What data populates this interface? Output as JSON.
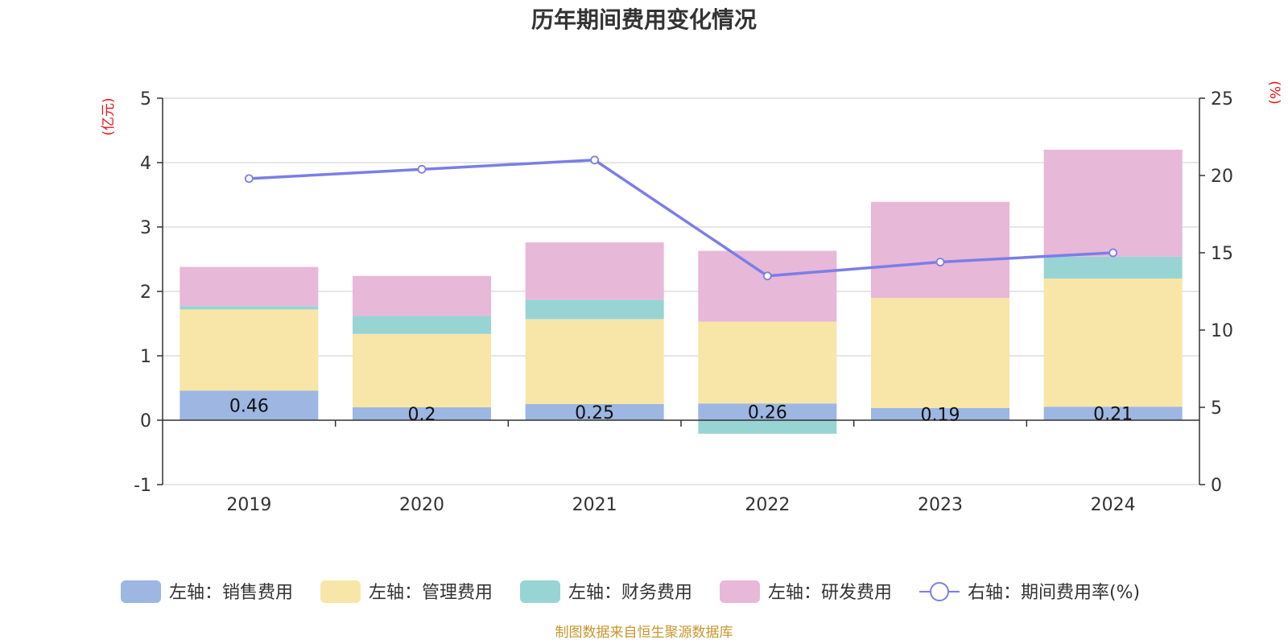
{
  "chart_data": {
    "type": "bar",
    "stacked": true,
    "title": "历年期间费用变化情况",
    "categories": [
      "2019",
      "2020",
      "2021",
      "2022",
      "2023",
      "2024"
    ],
    "left_axis": {
      "unit_label": "(亿元)",
      "range": [
        -1,
        5
      ],
      "ticks": [
        -1,
        0,
        1,
        2,
        3,
        4,
        5
      ]
    },
    "right_axis": {
      "unit_label": "(%)",
      "range": [
        0,
        25
      ],
      "ticks": [
        0,
        5,
        10,
        15,
        20,
        25
      ]
    },
    "series": [
      {
        "name": "左轴：销售费用",
        "axis": "left",
        "type": "bar",
        "color": "#9db6e2",
        "values": [
          0.46,
          0.2,
          0.25,
          0.26,
          0.19,
          0.21
        ],
        "show_labels": true
      },
      {
        "name": "左轴：管理费用",
        "axis": "left",
        "type": "bar",
        "color": "#f7e6a8",
        "values": [
          1.26,
          1.14,
          1.32,
          1.27,
          1.71,
          1.99
        ]
      },
      {
        "name": "左轴：财务费用",
        "axis": "left",
        "type": "bar",
        "color": "#99d4d4",
        "values": [
          0.05,
          0.28,
          0.3,
          -0.21,
          0.0,
          0.34
        ]
      },
      {
        "name": "左轴：研发费用",
        "axis": "left",
        "type": "bar",
        "color": "#e7b8d8",
        "values": [
          0.61,
          0.62,
          0.89,
          1.1,
          1.49,
          1.66
        ]
      },
      {
        "name": "右轴：期间费用率(%)",
        "axis": "right",
        "type": "line",
        "color": "#7b7ee8",
        "values": [
          19.8,
          20.4,
          21.0,
          13.5,
          14.4,
          15.0
        ]
      }
    ],
    "legend_position": "bottom",
    "grid": true
  },
  "colors": {
    "unit_label": "#ee1111",
    "source": "#c8962e",
    "axis": "#333333",
    "grid": "#cccccc"
  },
  "footer": {
    "source": "制图数据来自恒生聚源数据库"
  }
}
